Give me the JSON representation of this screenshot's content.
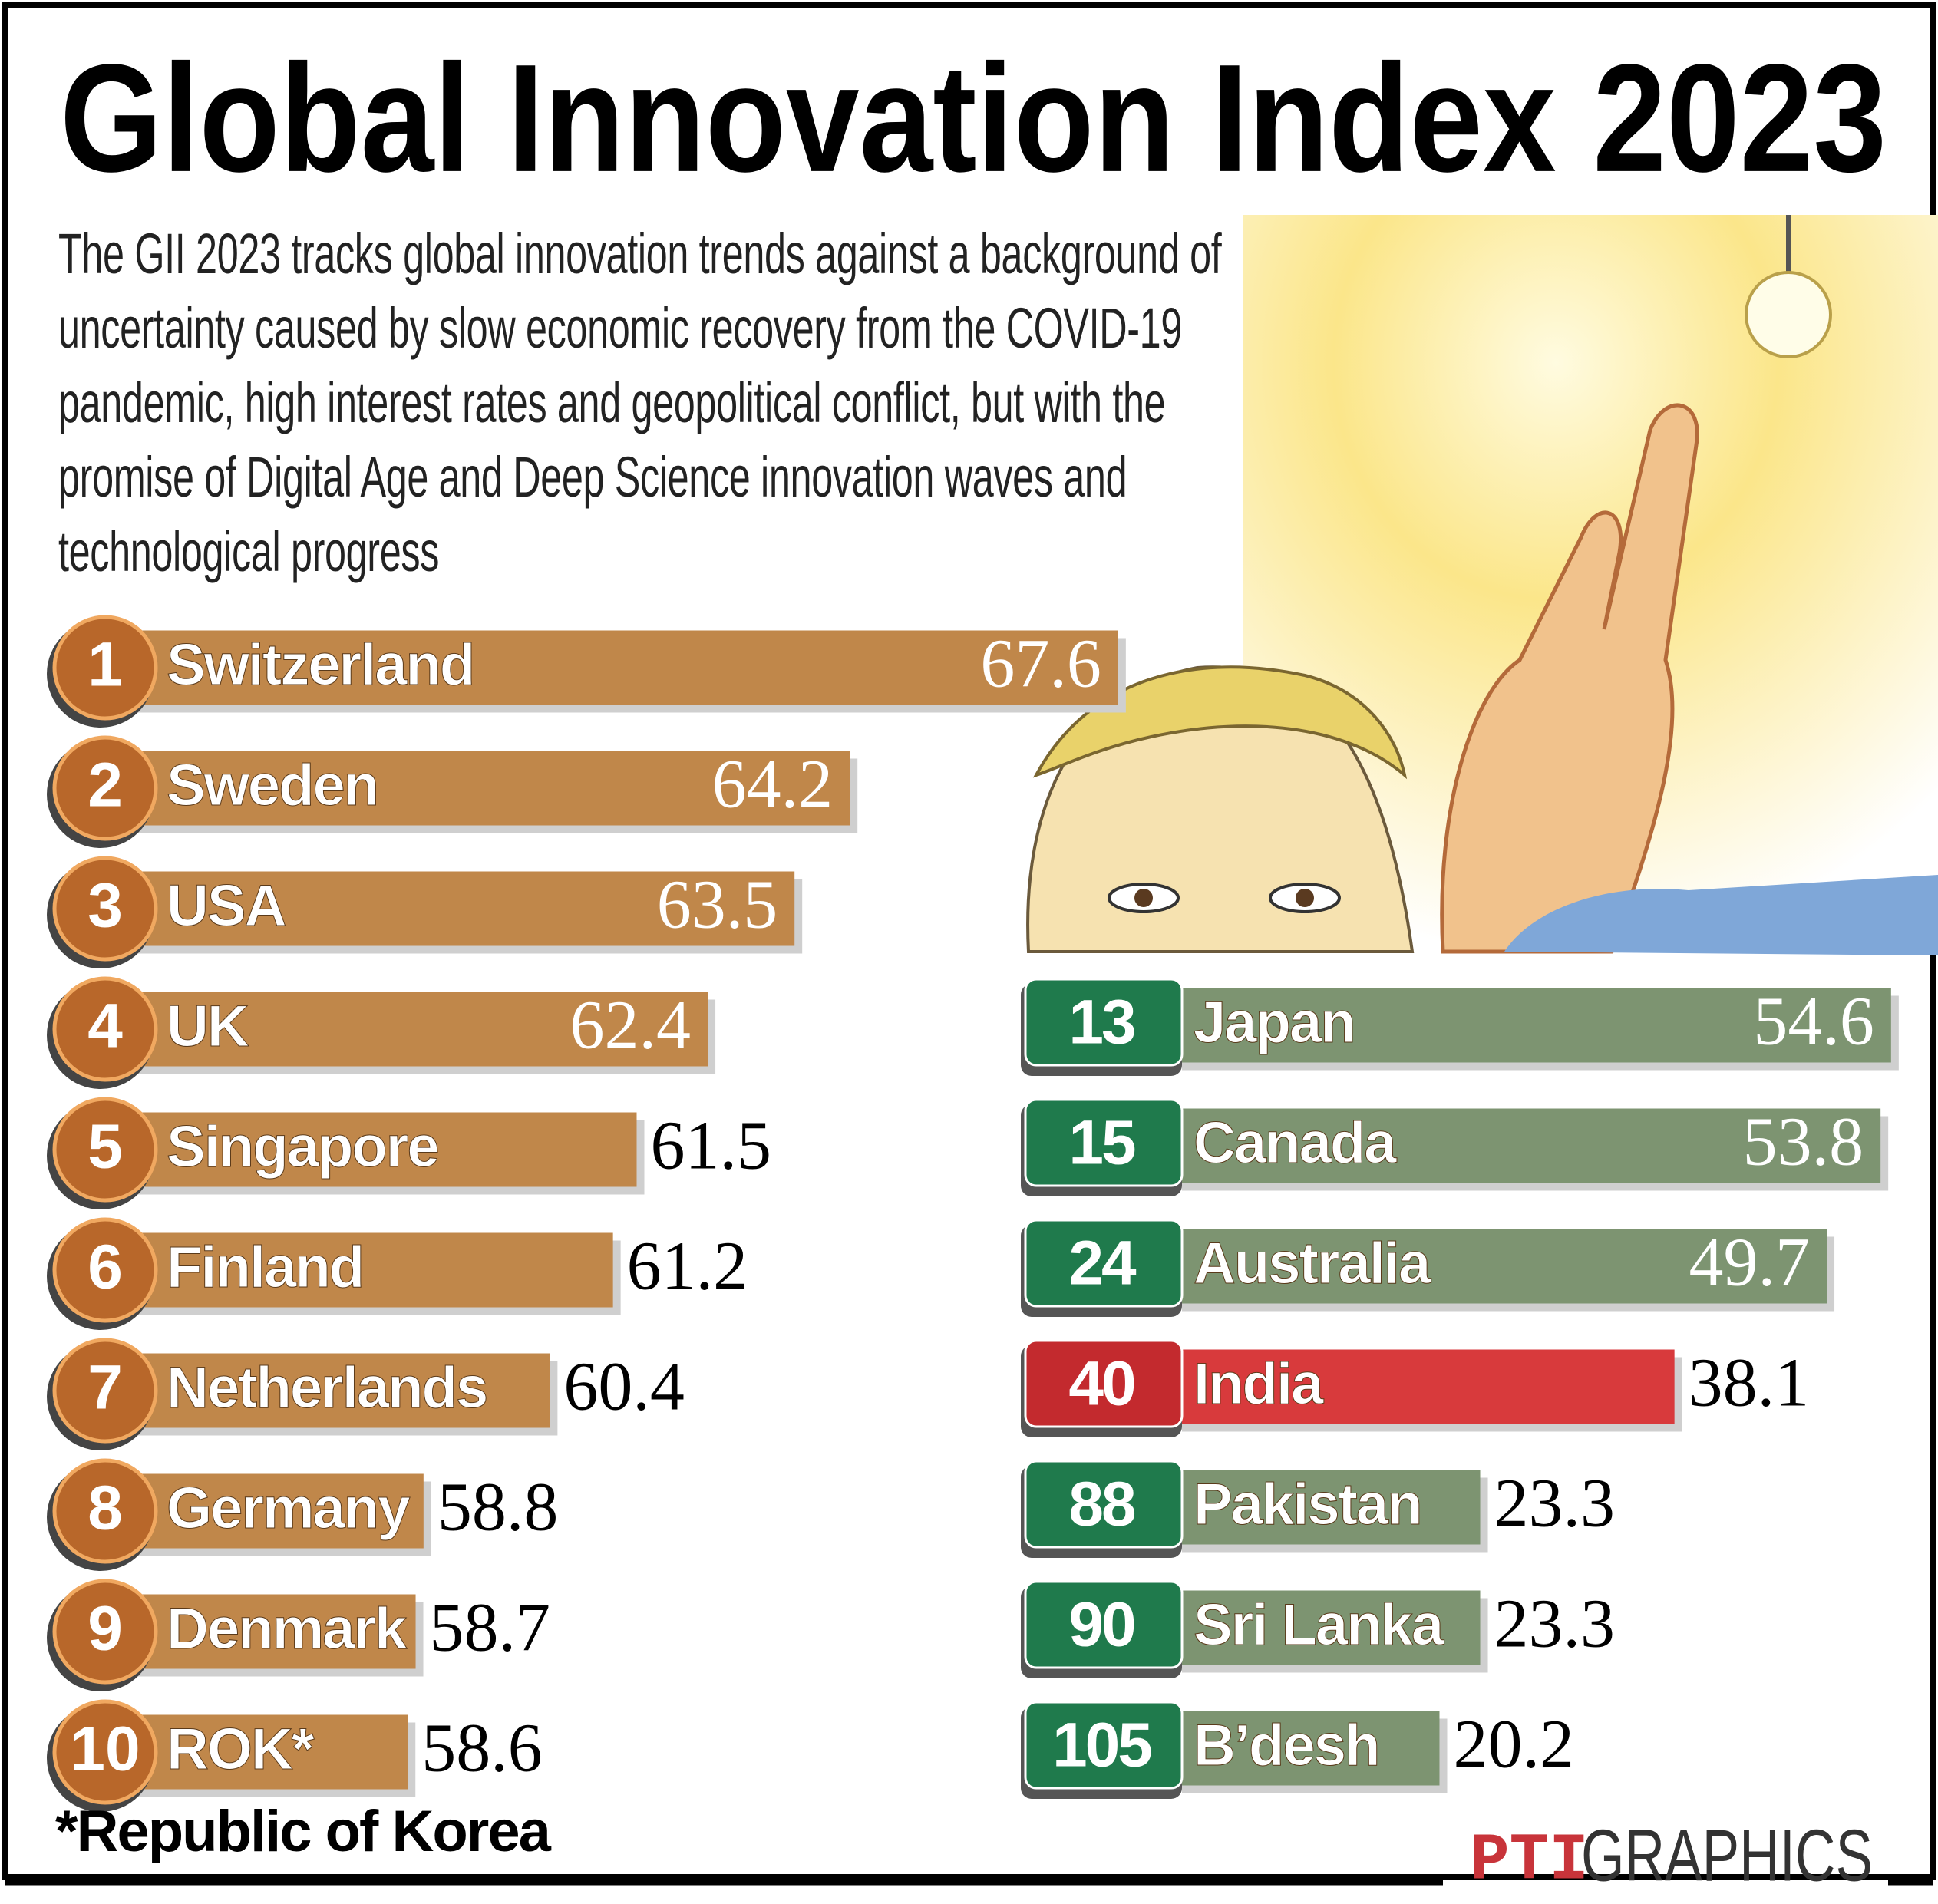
{
  "header": {
    "title": "Global Innovation Index 2023",
    "subtitle": "The GII 2023 tracks global innovation trends against a background of uncertainty caused by slow economic recovery from the COVID-19 pandemic, high interest rates and geopolitical conflict, but with the promise of Digital Age and Deep Science innovation waves and technological progress"
  },
  "chart_data": [
    {
      "type": "bar",
      "orientation": "horizontal",
      "ranks": [
        1,
        2,
        3,
        4,
        5,
        6,
        7,
        8,
        9,
        10
      ],
      "categories": [
        "Switzerland",
        "Sweden",
        "USA",
        "UK",
        "Singapore",
        "Finland",
        "Netherlands",
        "Germany",
        "Denmark",
        "ROK*"
      ],
      "values": [
        67.6,
        64.2,
        63.5,
        62.4,
        61.5,
        61.2,
        60.4,
        58.8,
        58.7,
        58.6
      ],
      "color": "#c0874a",
      "badge_color": "#b8672a",
      "badge": "circle",
      "xlim": [
        55,
        68
      ],
      "footnote": "*Republic of Korea"
    },
    {
      "type": "bar",
      "orientation": "horizontal",
      "ranks": [
        13,
        15,
        24,
        40,
        88,
        90,
        105
      ],
      "categories": [
        "Japan",
        "Canada",
        "Australia",
        "India",
        "Pakistan",
        "Sri Lanka",
        "B’desh"
      ],
      "values": [
        54.6,
        53.8,
        49.7,
        38.1,
        23.3,
        23.3,
        20.2
      ],
      "colors": [
        "#7d9471",
        "#7d9471",
        "#7d9471",
        "#d83a3c",
        "#7d9471",
        "#7d9471",
        "#7d9471"
      ],
      "badge_colors": [
        "#1f7a4c",
        "#1f7a4c",
        "#1f7a4c",
        "#c32a2e",
        "#1f7a4c",
        "#1f7a4c",
        "#1f7a4c"
      ],
      "badge": "rect",
      "xlim": [
        0,
        58
      ]
    }
  ],
  "source": {
    "logo": "PTI",
    "label": "GRAPHICS"
  }
}
